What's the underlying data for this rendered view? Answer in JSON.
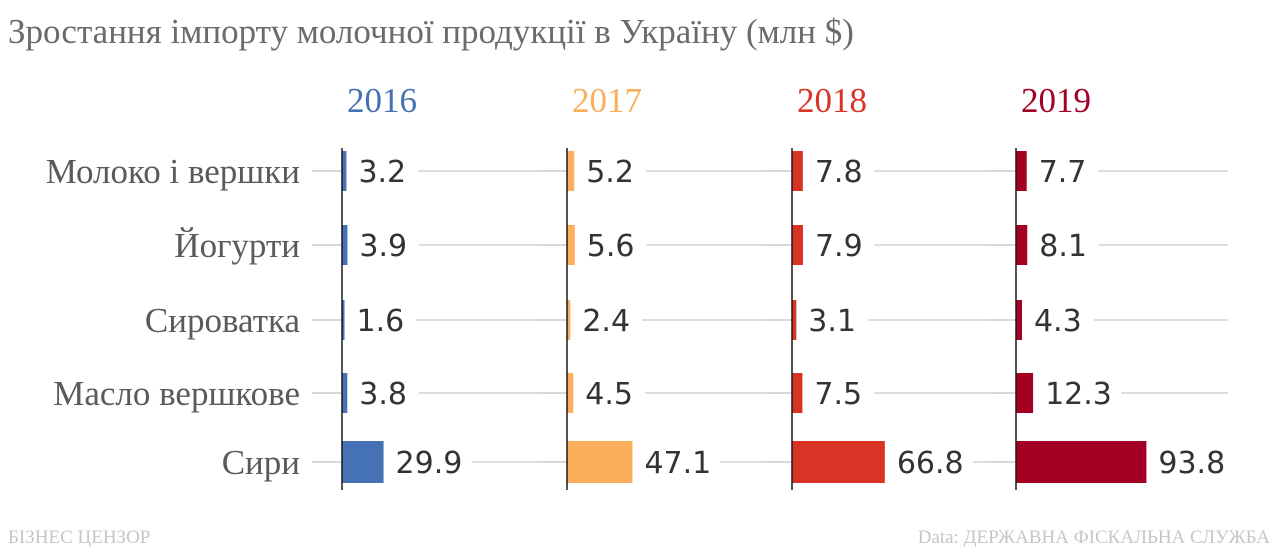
{
  "title": "Зростання імпорту молочної продукції в Україну (млн $)",
  "footer": {
    "source_left": "БІЗНЕС ЦЕНЗОР",
    "source_right": "Data: ДЕРЖАВНА ФІСКАЛЬНА СЛУЖБА"
  },
  "chart_data": {
    "type": "bar",
    "orientation": "horizontal",
    "layout": "small-multiples",
    "title": "Зростання імпорту молочної продукції в Україну (млн $)",
    "categories": [
      "Молоко і вершки",
      "Йогурти",
      "Сироватка",
      "Масло вершкове",
      "Сири"
    ],
    "series": [
      {
        "name": "2016",
        "color": "#4472b4",
        "values": [
          3.2,
          3.9,
          1.6,
          3.8,
          29.9
        ]
      },
      {
        "name": "2017",
        "color": "#fbae5b",
        "values": [
          5.2,
          5.6,
          2.4,
          4.5,
          47.1
        ]
      },
      {
        "name": "2018",
        "color": "#d93326",
        "values": [
          7.8,
          7.9,
          3.1,
          7.5,
          66.8
        ]
      },
      {
        "name": "2019",
        "color": "#a30023",
        "values": [
          7.7,
          8.1,
          4.3,
          12.3,
          93.8
        ]
      }
    ],
    "xlim": [
      0,
      100
    ],
    "grid": true,
    "data_labels": true
  }
}
